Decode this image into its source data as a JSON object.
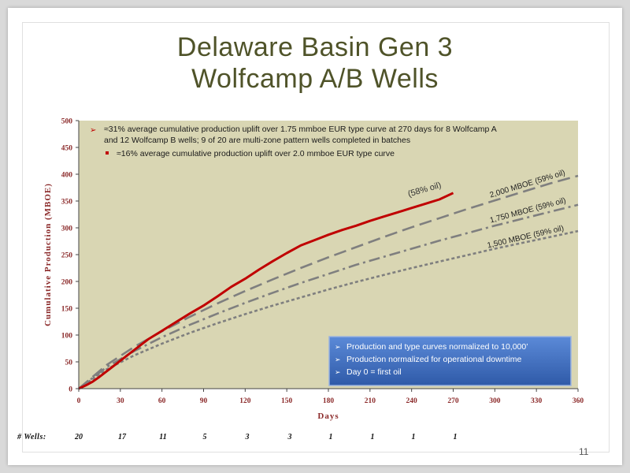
{
  "slide": {
    "title_line1": "Delaware Basin Gen 3",
    "title_line2": "Wolfcamp A/B Wells",
    "page_number": "11"
  },
  "colors": {
    "title": "#4f5329",
    "plot_bg": "#d9d6b3",
    "axis_text": "#8b2a2a",
    "actual": "#c00000",
    "type_curve": "#7f7f7f",
    "note_box": "#4472c4"
  },
  "bullets": {
    "main": "≈31% average cumulative production uplift over 1.75 mmboe EUR type curve at 270 days for 8 Wolfcamp A and 12 Wolfcamp B wells; 9 of 20 are multi-zone pattern wells completed in batches",
    "sub": "≈16% average cumulative production uplift over 2.0 mmboe EUR type curve"
  },
  "note_box": {
    "items": [
      "Production and type curves normalized to 10,000’",
      "Production normalized for operational downtime",
      "Day 0 = first oil"
    ]
  },
  "wells_row": {
    "label": "# Wells:",
    "counts": [
      "20",
      "17",
      "11",
      "5",
      "3",
      "3",
      "1",
      "1",
      "1",
      "1"
    ]
  },
  "chart_data": {
    "type": "line",
    "xlabel": "Days",
    "ylabel": "Cumulative Production (MBOE)",
    "xlim": [
      0,
      360
    ],
    "ylim": [
      0,
      500
    ],
    "xticks": [
      0,
      30,
      60,
      90,
      120,
      150,
      180,
      210,
      240,
      270,
      300,
      330,
      360
    ],
    "yticks": [
      0,
      50,
      100,
      150,
      200,
      250,
      300,
      350,
      400,
      450,
      500
    ],
    "grid": false,
    "series": [
      {
        "name": "(58% oil)",
        "style": "solid",
        "x": [
          0,
          5,
          10,
          15,
          20,
          25,
          30,
          40,
          50,
          60,
          70,
          80,
          90,
          100,
          110,
          120,
          130,
          140,
          150,
          160,
          170,
          180,
          190,
          200,
          210,
          220,
          230,
          240,
          250,
          260,
          270
        ],
        "y": [
          0,
          6,
          13,
          22,
          32,
          42,
          52,
          72,
          92,
          108,
          124,
          140,
          155,
          172,
          190,
          205,
          222,
          238,
          253,
          267,
          277,
          287,
          296,
          304,
          313,
          321,
          329,
          337,
          345,
          353,
          365
        ]
      },
      {
        "name": "2,000 MBOE (59% oil)",
        "style": "dash",
        "x": [
          0,
          20,
          40,
          60,
          80,
          100,
          120,
          140,
          160,
          180,
          200,
          220,
          240,
          260,
          280,
          300,
          320,
          340,
          360
        ],
        "y": [
          0,
          44,
          78,
          107,
          134,
          159,
          182,
          204,
          225,
          245,
          264,
          283,
          301,
          318,
          335,
          351,
          367,
          383,
          397
        ]
      },
      {
        "name": "1,750 MBOE (59% oil)",
        "style": "dashdot",
        "x": [
          0,
          20,
          40,
          60,
          80,
          100,
          120,
          140,
          160,
          180,
          200,
          220,
          240,
          260,
          280,
          300,
          320,
          340,
          360
        ],
        "y": [
          0,
          40,
          70,
          96,
          119,
          140,
          160,
          179,
          197,
          214,
          231,
          246,
          261,
          276,
          290,
          304,
          317,
          330,
          343
        ]
      },
      {
        "name": "1,500 MBOE (59% oil)",
        "style": "dot",
        "x": [
          0,
          20,
          40,
          60,
          80,
          100,
          120,
          140,
          160,
          180,
          200,
          220,
          240,
          260,
          280,
          300,
          320,
          340,
          360
        ],
        "y": [
          0,
          36,
          62,
          84,
          104,
          122,
          139,
          155,
          170,
          185,
          199,
          212,
          225,
          237,
          249,
          261,
          272,
          283,
          294
        ]
      }
    ]
  }
}
